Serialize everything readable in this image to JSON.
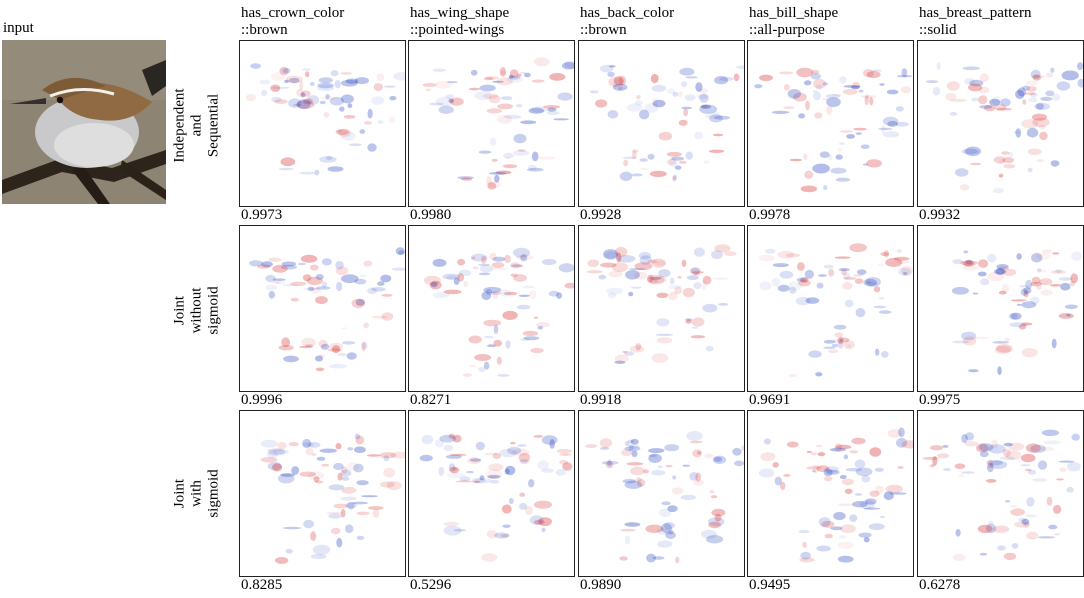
{
  "input_label": "input",
  "columns": [
    {
      "title_line1": "has_crown_color",
      "title_line2": "::brown"
    },
    {
      "title_line1": "has_wing_shape",
      "title_line2": "::pointed-wings"
    },
    {
      "title_line1": "has_back_color",
      "title_line2": "::brown"
    },
    {
      "title_line1": "has_bill_shape",
      "title_line2": "::all-purpose"
    },
    {
      "title_line1": "has_breast_pattern",
      "title_line2": "::solid"
    }
  ],
  "rows": [
    {
      "label": [
        "Independent",
        "and",
        "Sequential"
      ],
      "scores": [
        "0.9973",
        "0.9980",
        "0.9928",
        "0.9978",
        "0.9932"
      ]
    },
    {
      "label": [
        "Joint",
        "without",
        "sigmoid"
      ],
      "scores": [
        "0.9996",
        "0.8271",
        "0.9918",
        "0.9691",
        "0.9975"
      ]
    },
    {
      "label": [
        "Joint",
        "with",
        "sigmoid"
      ],
      "scores": [
        "0.8285",
        "0.5296",
        "0.9890",
        "0.9495",
        "0.6278"
      ]
    }
  ],
  "colors": {
    "positive": "#d62728",
    "negative": "#1f3fbf"
  }
}
